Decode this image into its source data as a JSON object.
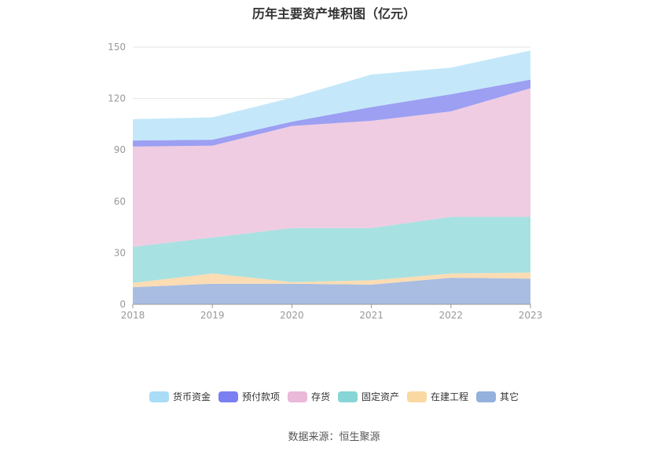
{
  "chart_data": {
    "type": "area",
    "stacked": true,
    "title": "历年主要资产堆积图（亿元）",
    "x": [
      "2018",
      "2019",
      "2020",
      "2021",
      "2022",
      "2023"
    ],
    "ylim": [
      0,
      150
    ],
    "yticks": [
      0,
      30,
      60,
      90,
      120,
      150
    ],
    "grid": true,
    "legend_position": "bottom",
    "series": [
      {
        "name": "其它",
        "color": "#a9bde2",
        "values": [
          10,
          12,
          12,
          11.5,
          15.5,
          15
        ]
      },
      {
        "name": "在建工程",
        "color": "#fbdcb3",
        "values": [
          2.5,
          6,
          1,
          2.5,
          2.5,
          3.5
        ]
      },
      {
        "name": "固定资产",
        "color": "#a8e1e1",
        "values": [
          21,
          21,
          31.5,
          30.5,
          33,
          32.5
        ]
      },
      {
        "name": "存货",
        "color": "#efcce2",
        "values": [
          58.5,
          53.5,
          59.5,
          62.5,
          61.5,
          75
        ]
      },
      {
        "name": "预付款项",
        "color": "#9c9ff2",
        "values": [
          3.5,
          3.5,
          2.5,
          8,
          10,
          5
        ]
      },
      {
        "name": "货币资金",
        "color": "#c4e8fa",
        "values": [
          12.5,
          13,
          14,
          19,
          15.5,
          17
        ]
      }
    ]
  },
  "legend": [
    {
      "name": "货币资金",
      "color": "#a9dcf7"
    },
    {
      "name": "预付款项",
      "color": "#7b7ff1"
    },
    {
      "name": "存货",
      "color": "#eab8d8"
    },
    {
      "name": "固定资产",
      "color": "#87d5d4"
    },
    {
      "name": "在建工程",
      "color": "#fad9a1"
    },
    {
      "name": "其它",
      "color": "#94b0dd"
    }
  ],
  "source_text": "数据来源：恒生聚源"
}
